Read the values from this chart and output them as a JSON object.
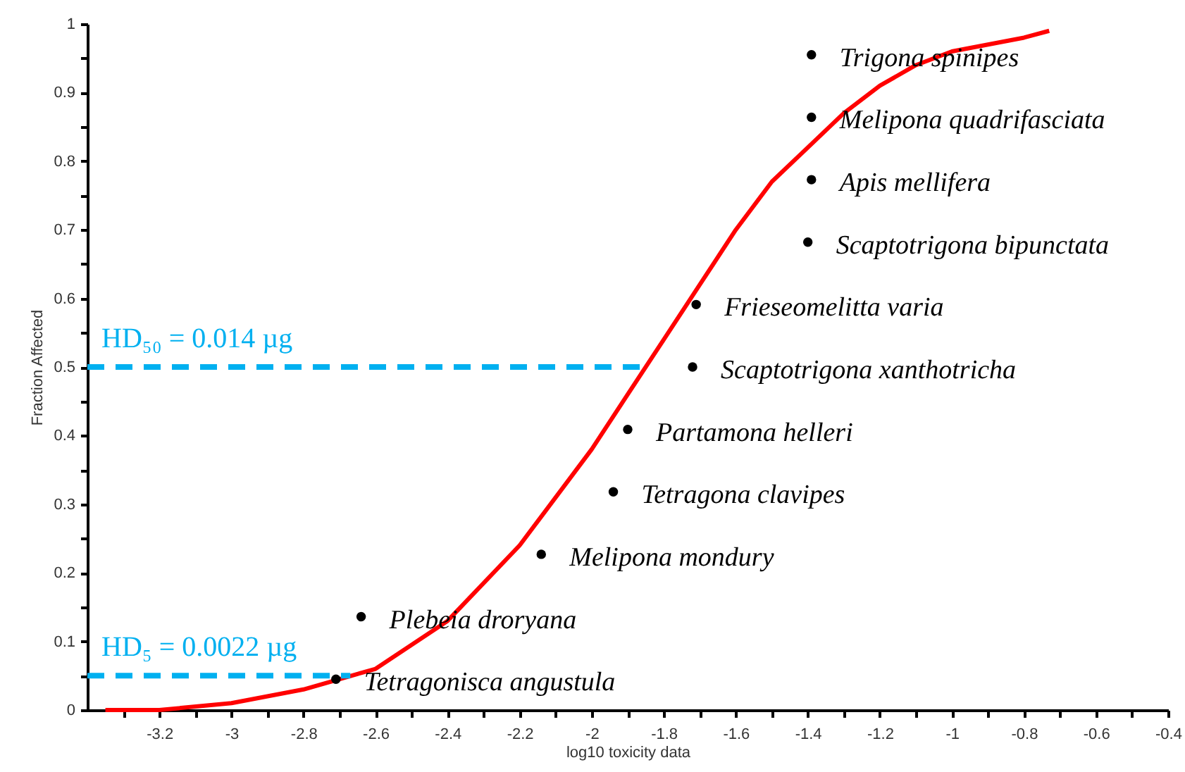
{
  "chart_data": {
    "type": "scatter",
    "xlabel": "log10 toxicity data",
    "ylabel": "Fraction Affected",
    "xlim": [
      -3.4,
      -0.4
    ],
    "ylim": [
      0,
      1
    ],
    "xticks": [
      {
        "value": -3.3,
        "label": null
      },
      -3.2,
      {
        "value": -3.1,
        "label": null
      },
      -3,
      {
        "value": -2.9,
        "label": null
      },
      -2.8,
      {
        "value": -2.7,
        "label": null
      },
      -2.6,
      {
        "value": -2.5,
        "label": null
      },
      -2.4,
      {
        "value": -2.3,
        "label": null
      },
      -2.2,
      {
        "value": -2.1,
        "label": null
      },
      -2,
      {
        "value": -1.9,
        "label": null
      },
      -1.8,
      {
        "value": -1.7,
        "label": null
      },
      -1.6,
      {
        "value": -1.5,
        "label": null
      },
      -1.4,
      {
        "value": -1.3,
        "label": null
      },
      -1.2,
      {
        "value": -1.1,
        "label": null
      },
      -1,
      {
        "value": -0.9,
        "label": null
      },
      -0.8,
      {
        "value": -0.7,
        "label": null
      },
      -0.6,
      {
        "value": -0.5,
        "label": null
      },
      -0.4
    ],
    "yticks": [
      0,
      {
        "value": 0.05,
        "label": null
      },
      0.1,
      {
        "value": 0.15,
        "label": null
      },
      0.2,
      {
        "value": 0.25,
        "label": null
      },
      0.3,
      {
        "value": 0.35,
        "label": null
      },
      0.4,
      {
        "value": 0.45,
        "label": null
      },
      0.5,
      {
        "value": 0.55,
        "label": null
      },
      0.6,
      {
        "value": 0.65,
        "label": null
      },
      0.7,
      {
        "value": 0.75,
        "label": null
      },
      0.8,
      {
        "value": 0.85,
        "label": null
      },
      0.9,
      {
        "value": 0.95,
        "label": null
      },
      1
    ],
    "grid": false,
    "marker": "circle",
    "series": [
      {
        "type": "line",
        "color": "#ff0000",
        "line_style": "solid",
        "marker": "none",
        "x": [
          -3.35,
          -3.2,
          -3.0,
          -2.8,
          -2.6,
          -2.4,
          -2.2,
          -2.0,
          -1.9,
          -1.8,
          -1.7,
          -1.6,
          -1.5,
          -1.4,
          -1.3,
          -1.2,
          -1.1,
          -1.0,
          -0.9,
          -0.8,
          -0.73
        ],
        "values": [
          0.0,
          0.0,
          0.01,
          0.03,
          0.06,
          0.13,
          0.24,
          0.38,
          0.46,
          0.54,
          0.62,
          0.7,
          0.77,
          0.82,
          0.87,
          0.91,
          0.94,
          0.96,
          0.97,
          0.98,
          0.99
        ]
      },
      {
        "type": "line",
        "color": "#00b0f0",
        "line_style": "dashed",
        "marker": "none",
        "x": [
          -3.4,
          -1.86
        ],
        "values": [
          0.5,
          0.5
        ]
      },
      {
        "type": "line",
        "color": "#00b0f0",
        "line_style": "dashed",
        "marker": "none",
        "x": [
          -3.4,
          -2.67
        ],
        "values": [
          0.05,
          0.05
        ]
      },
      {
        "type": "scatter",
        "color": "#000000",
        "x": [
          -2.71,
          -2.64,
          -2.14,
          -1.94,
          -1.9,
          -1.72,
          -1.71,
          -1.4,
          -1.39,
          -1.39,
          -1.39
        ],
        "values": [
          0.045,
          0.136,
          0.227,
          0.318,
          0.409,
          0.5,
          0.591,
          0.682,
          0.773,
          0.864,
          0.955
        ]
      }
    ],
    "annotations": [
      {
        "text": "Tetragonisca angustula",
        "x": -2.71,
        "y": 0.045
      },
      {
        "text": "Plebeia droryana",
        "x": -2.64,
        "y": 0.136
      },
      {
        "text": "Melipona mondury",
        "x": -2.14,
        "y": 0.227
      },
      {
        "text": "Tetragona clavipes",
        "x": -1.94,
        "y": 0.318
      },
      {
        "text": "Partamona helleri",
        "x": -1.9,
        "y": 0.409
      },
      {
        "text": "Scaptotrigona xanthotricha",
        "x": -1.72,
        "y": 0.5
      },
      {
        "text": "Frieseomelitta varia",
        "x": -1.71,
        "y": 0.591
      },
      {
        "text": "Scaptotrigona bipunctata",
        "x": -1.4,
        "y": 0.682
      },
      {
        "text": "Apis mellifera",
        "x": -1.39,
        "y": 0.773
      },
      {
        "text": "Melipona quadrifasciata",
        "x": -1.39,
        "y": 0.864
      },
      {
        "text": "Trigona spinipes",
        "x": -1.39,
        "y": 0.955
      },
      {
        "text": "HD₅₀ = 0.014 µg",
        "x": -3.4,
        "y": 0.5
      },
      {
        "text": "HD₅ = 0.0022 µg",
        "x": -3.4,
        "y": 0.05
      }
    ]
  }
}
